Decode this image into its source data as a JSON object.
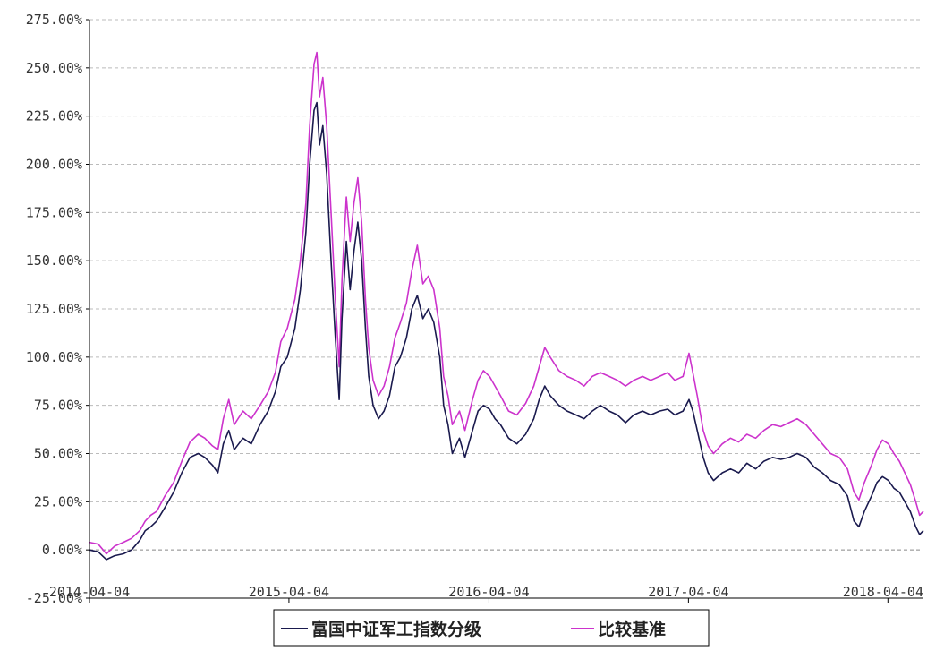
{
  "chart_data": {
    "type": "line",
    "y_unit": "%",
    "ylim": [
      -25,
      275
    ],
    "y_ticks": [
      "275.00%",
      "250.00%",
      "225.00%",
      "200.00%",
      "175.00%",
      "150.00%",
      "125.00%",
      "100.00%",
      "75.00%",
      "50.00%",
      "25.00%",
      "0.00%",
      "-25.00%"
    ],
    "y_tick_values": [
      275,
      250,
      225,
      200,
      175,
      150,
      125,
      100,
      75,
      50,
      25,
      0,
      -25
    ],
    "xlim": [
      "2014-04-04",
      "2018-06-08"
    ],
    "x_ticks": [
      "2014-04-04",
      "2015-04-04",
      "2016-04-04",
      "2017-04-04",
      "2018-04-04"
    ],
    "grid": true,
    "legend_position": "bottom",
    "series": [
      {
        "name": "富国中证军工指数分级",
        "color": "#1a1a4e",
        "points": [
          [
            "2014-04-04",
            0
          ],
          [
            "2014-04-20",
            -1
          ],
          [
            "2014-05-05",
            -5
          ],
          [
            "2014-05-20",
            -3
          ],
          [
            "2014-06-05",
            -2
          ],
          [
            "2014-06-20",
            0
          ],
          [
            "2014-07-05",
            5
          ],
          [
            "2014-07-15",
            10
          ],
          [
            "2014-07-25",
            12
          ],
          [
            "2014-08-05",
            15
          ],
          [
            "2014-08-20",
            22
          ],
          [
            "2014-09-05",
            30
          ],
          [
            "2014-09-20",
            40
          ],
          [
            "2014-10-05",
            48
          ],
          [
            "2014-10-20",
            50
          ],
          [
            "2014-11-01",
            48
          ],
          [
            "2014-11-15",
            44
          ],
          [
            "2014-11-25",
            40
          ],
          [
            "2014-12-05",
            55
          ],
          [
            "2014-12-15",
            62
          ],
          [
            "2014-12-25",
            52
          ],
          [
            "2015-01-10",
            58
          ],
          [
            "2015-01-25",
            55
          ],
          [
            "2015-02-10",
            65
          ],
          [
            "2015-02-25",
            72
          ],
          [
            "2015-03-10",
            82
          ],
          [
            "2015-03-20",
            95
          ],
          [
            "2015-04-01",
            100
          ],
          [
            "2015-04-15",
            115
          ],
          [
            "2015-04-25",
            135
          ],
          [
            "2015-05-05",
            165
          ],
          [
            "2015-05-12",
            200
          ],
          [
            "2015-05-20",
            228
          ],
          [
            "2015-05-25",
            232
          ],
          [
            "2015-05-30",
            210
          ],
          [
            "2015-06-05",
            220
          ],
          [
            "2015-06-12",
            195
          ],
          [
            "2015-06-20",
            150
          ],
          [
            "2015-06-28",
            110
          ],
          [
            "2015-07-05",
            78
          ],
          [
            "2015-07-10",
            120
          ],
          [
            "2015-07-18",
            160
          ],
          [
            "2015-07-25",
            135
          ],
          [
            "2015-08-01",
            155
          ],
          [
            "2015-08-08",
            170
          ],
          [
            "2015-08-15",
            150
          ],
          [
            "2015-08-22",
            115
          ],
          [
            "2015-08-28",
            90
          ],
          [
            "2015-09-05",
            75
          ],
          [
            "2015-09-15",
            68
          ],
          [
            "2015-09-25",
            72
          ],
          [
            "2015-10-05",
            80
          ],
          [
            "2015-10-15",
            95
          ],
          [
            "2015-10-25",
            100
          ],
          [
            "2015-11-05",
            110
          ],
          [
            "2015-11-15",
            125
          ],
          [
            "2015-11-25",
            132
          ],
          [
            "2015-12-05",
            120
          ],
          [
            "2015-12-15",
            125
          ],
          [
            "2015-12-25",
            118
          ],
          [
            "2016-01-05",
            100
          ],
          [
            "2016-01-12",
            75
          ],
          [
            "2016-01-20",
            65
          ],
          [
            "2016-01-28",
            50
          ],
          [
            "2016-02-10",
            58
          ],
          [
            "2016-02-20",
            48
          ],
          [
            "2016-03-05",
            62
          ],
          [
            "2016-03-15",
            72
          ],
          [
            "2016-03-25",
            75
          ],
          [
            "2016-04-05",
            73
          ],
          [
            "2016-04-15",
            68
          ],
          [
            "2016-04-25",
            65
          ],
          [
            "2016-05-10",
            58
          ],
          [
            "2016-05-25",
            55
          ],
          [
            "2016-06-10",
            60
          ],
          [
            "2016-06-25",
            68
          ],
          [
            "2016-07-05",
            78
          ],
          [
            "2016-07-15",
            85
          ],
          [
            "2016-07-25",
            80
          ],
          [
            "2016-08-10",
            75
          ],
          [
            "2016-08-25",
            72
          ],
          [
            "2016-09-10",
            70
          ],
          [
            "2016-09-25",
            68
          ],
          [
            "2016-10-10",
            72
          ],
          [
            "2016-10-25",
            75
          ],
          [
            "2016-11-10",
            72
          ],
          [
            "2016-11-25",
            70
          ],
          [
            "2016-12-10",
            66
          ],
          [
            "2016-12-25",
            70
          ],
          [
            "2017-01-10",
            72
          ],
          [
            "2017-01-25",
            70
          ],
          [
            "2017-02-10",
            72
          ],
          [
            "2017-02-25",
            73
          ],
          [
            "2017-03-10",
            70
          ],
          [
            "2017-03-25",
            72
          ],
          [
            "2017-04-05",
            78
          ],
          [
            "2017-04-12",
            72
          ],
          [
            "2017-04-20",
            62
          ],
          [
            "2017-05-01",
            48
          ],
          [
            "2017-05-10",
            40
          ],
          [
            "2017-05-20",
            36
          ],
          [
            "2017-06-05",
            40
          ],
          [
            "2017-06-20",
            42
          ],
          [
            "2017-07-05",
            40
          ],
          [
            "2017-07-20",
            45
          ],
          [
            "2017-08-05",
            42
          ],
          [
            "2017-08-20",
            46
          ],
          [
            "2017-09-05",
            48
          ],
          [
            "2017-09-20",
            47
          ],
          [
            "2017-10-05",
            48
          ],
          [
            "2017-10-20",
            50
          ],
          [
            "2017-11-05",
            48
          ],
          [
            "2017-11-20",
            43
          ],
          [
            "2017-12-05",
            40
          ],
          [
            "2017-12-20",
            36
          ],
          [
            "2018-01-05",
            34
          ],
          [
            "2018-01-20",
            28
          ],
          [
            "2018-02-01",
            15
          ],
          [
            "2018-02-10",
            12
          ],
          [
            "2018-02-20",
            20
          ],
          [
            "2018-03-05",
            28
          ],
          [
            "2018-03-15",
            35
          ],
          [
            "2018-03-25",
            38
          ],
          [
            "2018-04-05",
            36
          ],
          [
            "2018-04-15",
            32
          ],
          [
            "2018-04-25",
            30
          ],
          [
            "2018-05-05",
            25
          ],
          [
            "2018-05-15",
            20
          ],
          [
            "2018-05-25",
            12
          ],
          [
            "2018-06-01",
            8
          ],
          [
            "2018-06-08",
            10
          ]
        ]
      },
      {
        "name": "比较基准",
        "color": "#cc33cc",
        "points": [
          [
            "2014-04-04",
            4
          ],
          [
            "2014-04-20",
            3
          ],
          [
            "2014-05-05",
            -2
          ],
          [
            "2014-05-20",
            2
          ],
          [
            "2014-06-05",
            4
          ],
          [
            "2014-06-20",
            6
          ],
          [
            "2014-07-05",
            10
          ],
          [
            "2014-07-15",
            15
          ],
          [
            "2014-07-25",
            18
          ],
          [
            "2014-08-05",
            20
          ],
          [
            "2014-08-20",
            28
          ],
          [
            "2014-09-05",
            35
          ],
          [
            "2014-09-20",
            46
          ],
          [
            "2014-10-05",
            56
          ],
          [
            "2014-10-20",
            60
          ],
          [
            "2014-11-01",
            58
          ],
          [
            "2014-11-15",
            54
          ],
          [
            "2014-11-25",
            52
          ],
          [
            "2014-12-05",
            68
          ],
          [
            "2014-12-15",
            78
          ],
          [
            "2014-12-25",
            65
          ],
          [
            "2015-01-10",
            72
          ],
          [
            "2015-01-25",
            68
          ],
          [
            "2015-02-10",
            75
          ],
          [
            "2015-02-25",
            82
          ],
          [
            "2015-03-10",
            92
          ],
          [
            "2015-03-20",
            108
          ],
          [
            "2015-04-01",
            115
          ],
          [
            "2015-04-15",
            130
          ],
          [
            "2015-04-25",
            150
          ],
          [
            "2015-05-05",
            180
          ],
          [
            "2015-05-12",
            220
          ],
          [
            "2015-05-20",
            252
          ],
          [
            "2015-05-25",
            258
          ],
          [
            "2015-05-30",
            235
          ],
          [
            "2015-06-05",
            245
          ],
          [
            "2015-06-12",
            220
          ],
          [
            "2015-06-20",
            175
          ],
          [
            "2015-06-28",
            130
          ],
          [
            "2015-07-05",
            95
          ],
          [
            "2015-07-10",
            140
          ],
          [
            "2015-07-18",
            183
          ],
          [
            "2015-07-25",
            160
          ],
          [
            "2015-08-01",
            180
          ],
          [
            "2015-08-08",
            193
          ],
          [
            "2015-08-15",
            170
          ],
          [
            "2015-08-22",
            130
          ],
          [
            "2015-08-28",
            105
          ],
          [
            "2015-09-05",
            88
          ],
          [
            "2015-09-15",
            80
          ],
          [
            "2015-09-25",
            85
          ],
          [
            "2015-10-05",
            95
          ],
          [
            "2015-10-15",
            110
          ],
          [
            "2015-10-25",
            118
          ],
          [
            "2015-11-05",
            128
          ],
          [
            "2015-11-15",
            145
          ],
          [
            "2015-11-25",
            158
          ],
          [
            "2015-12-05",
            138
          ],
          [
            "2015-12-15",
            142
          ],
          [
            "2015-12-25",
            135
          ],
          [
            "2016-01-05",
            115
          ],
          [
            "2016-01-12",
            90
          ],
          [
            "2016-01-20",
            80
          ],
          [
            "2016-01-28",
            65
          ],
          [
            "2016-02-10",
            72
          ],
          [
            "2016-02-20",
            62
          ],
          [
            "2016-03-05",
            78
          ],
          [
            "2016-03-15",
            88
          ],
          [
            "2016-03-25",
            93
          ],
          [
            "2016-04-05",
            90
          ],
          [
            "2016-04-15",
            85
          ],
          [
            "2016-04-25",
            80
          ],
          [
            "2016-05-10",
            72
          ],
          [
            "2016-05-25",
            70
          ],
          [
            "2016-06-10",
            76
          ],
          [
            "2016-06-25",
            85
          ],
          [
            "2016-07-05",
            95
          ],
          [
            "2016-07-15",
            105
          ],
          [
            "2016-07-25",
            100
          ],
          [
            "2016-08-10",
            93
          ],
          [
            "2016-08-25",
            90
          ],
          [
            "2016-09-10",
            88
          ],
          [
            "2016-09-25",
            85
          ],
          [
            "2016-10-10",
            90
          ],
          [
            "2016-10-25",
            92
          ],
          [
            "2016-11-10",
            90
          ],
          [
            "2016-11-25",
            88
          ],
          [
            "2016-12-10",
            85
          ],
          [
            "2016-12-25",
            88
          ],
          [
            "2017-01-10",
            90
          ],
          [
            "2017-01-25",
            88
          ],
          [
            "2017-02-10",
            90
          ],
          [
            "2017-02-25",
            92
          ],
          [
            "2017-03-10",
            88
          ],
          [
            "2017-03-25",
            90
          ],
          [
            "2017-04-05",
            102
          ],
          [
            "2017-04-12",
            92
          ],
          [
            "2017-04-20",
            80
          ],
          [
            "2017-05-01",
            62
          ],
          [
            "2017-05-10",
            54
          ],
          [
            "2017-05-20",
            50
          ],
          [
            "2017-06-05",
            55
          ],
          [
            "2017-06-20",
            58
          ],
          [
            "2017-07-05",
            56
          ],
          [
            "2017-07-20",
            60
          ],
          [
            "2017-08-05",
            58
          ],
          [
            "2017-08-20",
            62
          ],
          [
            "2017-09-05",
            65
          ],
          [
            "2017-09-20",
            64
          ],
          [
            "2017-10-05",
            66
          ],
          [
            "2017-10-20",
            68
          ],
          [
            "2017-11-05",
            65
          ],
          [
            "2017-11-20",
            60
          ],
          [
            "2017-12-05",
            55
          ],
          [
            "2017-12-20",
            50
          ],
          [
            "2018-01-05",
            48
          ],
          [
            "2018-01-20",
            42
          ],
          [
            "2018-02-01",
            30
          ],
          [
            "2018-02-10",
            26
          ],
          [
            "2018-02-20",
            35
          ],
          [
            "2018-03-05",
            44
          ],
          [
            "2018-03-15",
            52
          ],
          [
            "2018-03-25",
            57
          ],
          [
            "2018-04-05",
            55
          ],
          [
            "2018-04-15",
            50
          ],
          [
            "2018-04-25",
            46
          ],
          [
            "2018-05-05",
            40
          ],
          [
            "2018-05-15",
            34
          ],
          [
            "2018-05-25",
            25
          ],
          [
            "2018-06-01",
            18
          ],
          [
            "2018-06-08",
            20
          ]
        ]
      }
    ]
  }
}
